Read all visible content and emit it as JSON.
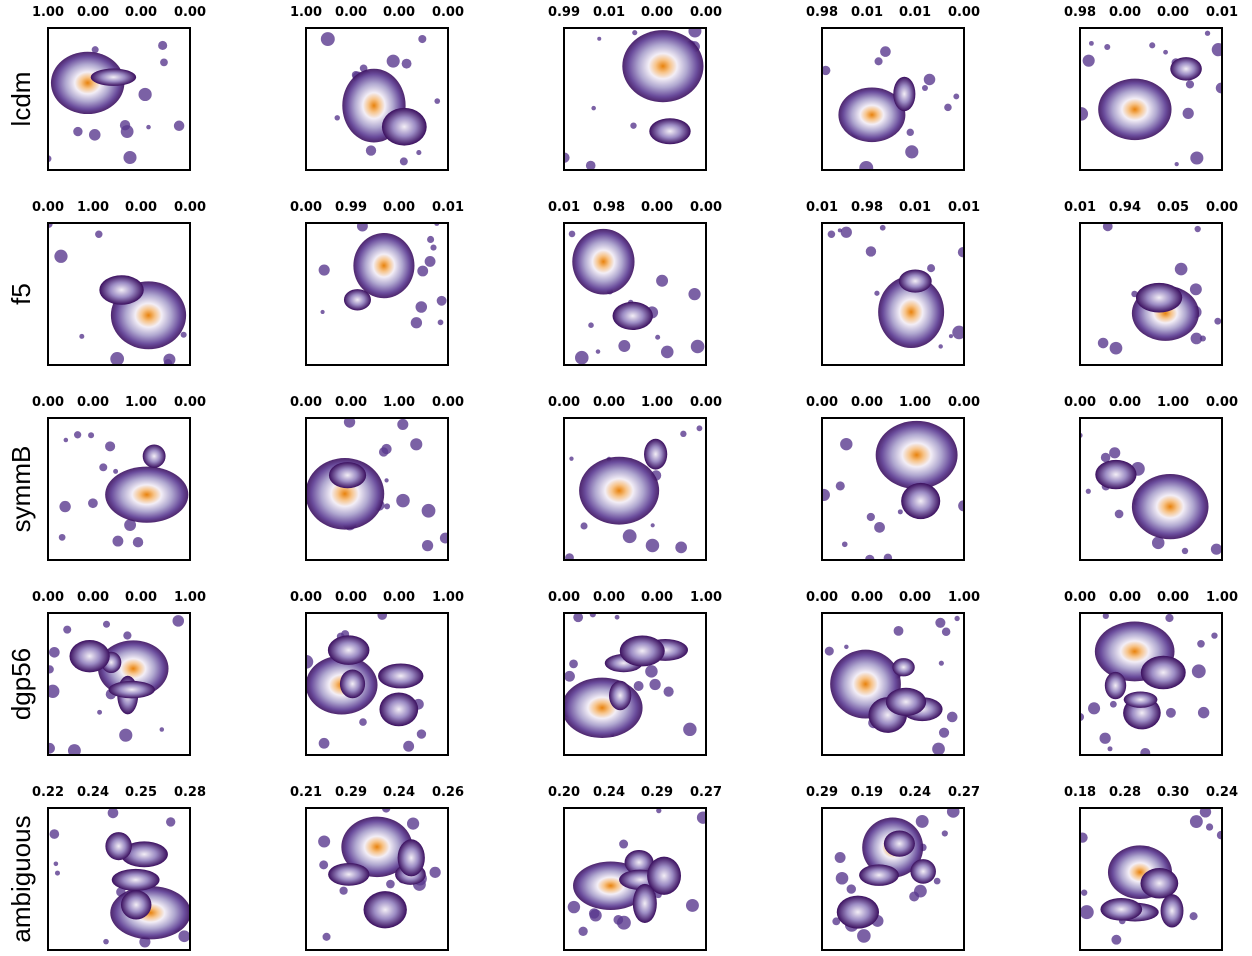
{
  "rows": [
    {
      "label": "lcdm",
      "panels": [
        [
          "1.00",
          "0.00",
          "0.00",
          "0.00"
        ],
        [
          "1.00",
          "0.00",
          "0.00",
          "0.00"
        ],
        [
          "0.99",
          "0.01",
          "0.00",
          "0.00"
        ],
        [
          "0.98",
          "0.01",
          "0.01",
          "0.00"
        ],
        [
          "0.98",
          "0.00",
          "0.00",
          "0.01"
        ]
      ]
    },
    {
      "label": "f5",
      "panels": [
        [
          "0.00",
          "1.00",
          "0.00",
          "0.00"
        ],
        [
          "0.00",
          "0.99",
          "0.00",
          "0.01"
        ],
        [
          "0.01",
          "0.98",
          "0.00",
          "0.00"
        ],
        [
          "0.01",
          "0.98",
          "0.01",
          "0.01"
        ],
        [
          "0.01",
          "0.94",
          "0.05",
          "0.00"
        ]
      ]
    },
    {
      "label": "symmB",
      "panels": [
        [
          "0.00",
          "0.00",
          "1.00",
          "0.00"
        ],
        [
          "0.00",
          "0.00",
          "1.00",
          "0.00"
        ],
        [
          "0.00",
          "0.00",
          "1.00",
          "0.00"
        ],
        [
          "0.00",
          "0.00",
          "1.00",
          "0.00"
        ],
        [
          "0.00",
          "0.00",
          "1.00",
          "0.00"
        ]
      ]
    },
    {
      "label": "dgp56",
      "panels": [
        [
          "0.00",
          "0.00",
          "0.00",
          "1.00"
        ],
        [
          "0.00",
          "0.00",
          "0.00",
          "1.00"
        ],
        [
          "0.00",
          "0.00",
          "0.00",
          "1.00"
        ],
        [
          "0.00",
          "0.00",
          "0.00",
          "1.00"
        ],
        [
          "0.00",
          "0.00",
          "0.00",
          "1.00"
        ]
      ]
    },
    {
      "label": "ambiguous",
      "panels": [
        [
          "0.22",
          "0.24",
          "0.25",
          "0.28"
        ],
        [
          "0.21",
          "0.29",
          "0.24",
          "0.26"
        ],
        [
          "0.20",
          "0.24",
          "0.29",
          "0.27"
        ],
        [
          "0.29",
          "0.19",
          "0.24",
          "0.27"
        ],
        [
          "0.18",
          "0.28",
          "0.30",
          "0.24"
        ]
      ]
    }
  ]
}
